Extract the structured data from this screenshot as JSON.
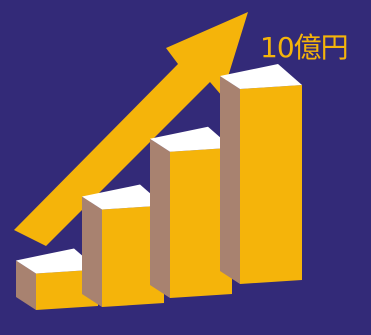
{
  "chart_data": {
    "type": "bar",
    "style": "3d-isometric",
    "values": [
      1,
      2,
      3,
      4
    ],
    "colors": {
      "background": "#332a78",
      "front": "#f5b40a",
      "side": "#a88270",
      "top": "#ffffff",
      "arrow": "#f5b40a"
    },
    "trend_arrow": true
  },
  "annotation": {
    "label": "10億円"
  }
}
